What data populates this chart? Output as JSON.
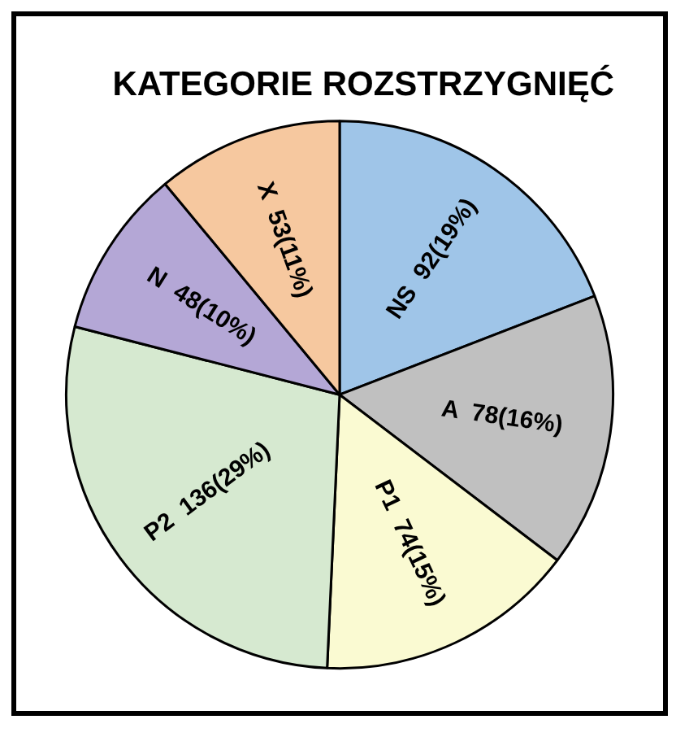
{
  "chart_data": {
    "type": "pie",
    "title": "KATEGORIE ROZSTRZYGNIĘĆ",
    "categories": [
      "NS",
      "A",
      "P1",
      "P2",
      "N",
      "X"
    ],
    "values": [
      92,
      78,
      74,
      136,
      48,
      53
    ],
    "value_labels": [
      "92(19%)",
      "78(16%)",
      "74(15%)",
      "136(29%)",
      "48(10%)",
      "53(11%)"
    ],
    "colors": [
      "#9fc5e8",
      "#c0c0c0",
      "#fafad2",
      "#d6e9d0",
      "#b4a7d6",
      "#f6c89f"
    ],
    "legend": false
  }
}
